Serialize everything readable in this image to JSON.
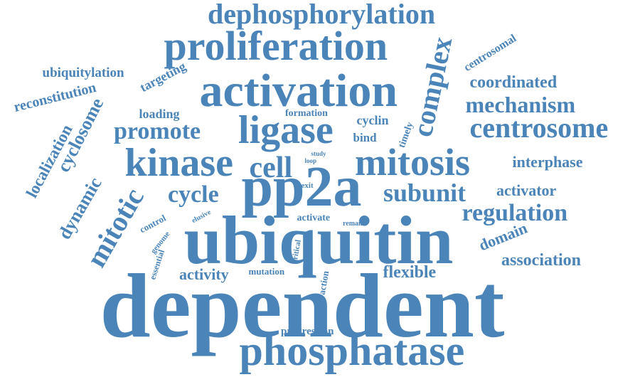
{
  "cloud": {
    "color": "#4a84b8",
    "words": [
      "dependent",
      "ubiquitin",
      "pp2a",
      "phosphatase",
      "activation",
      "proliferation",
      "ligase",
      "mitosis",
      "kinase",
      "dephosphorylation",
      "complex",
      "centrosome",
      "cell",
      "mitotic",
      "regulation",
      "subunit",
      "promote",
      "cycle",
      "mechanism",
      "cyclosome",
      "dynamic",
      "localization",
      "coordinated",
      "flexible",
      "association",
      "interphase",
      "activator",
      "activity",
      "domain",
      "reconstitution",
      "ubiquitylation",
      "targeting",
      "centrosomal",
      "loading",
      "cyclin",
      "progression",
      "timely",
      "bind",
      "formation",
      "mutation",
      "control",
      "activate",
      "action",
      "essential",
      "genome",
      "elusive",
      "critical",
      "exit",
      "remain",
      "study",
      "loop"
    ]
  }
}
